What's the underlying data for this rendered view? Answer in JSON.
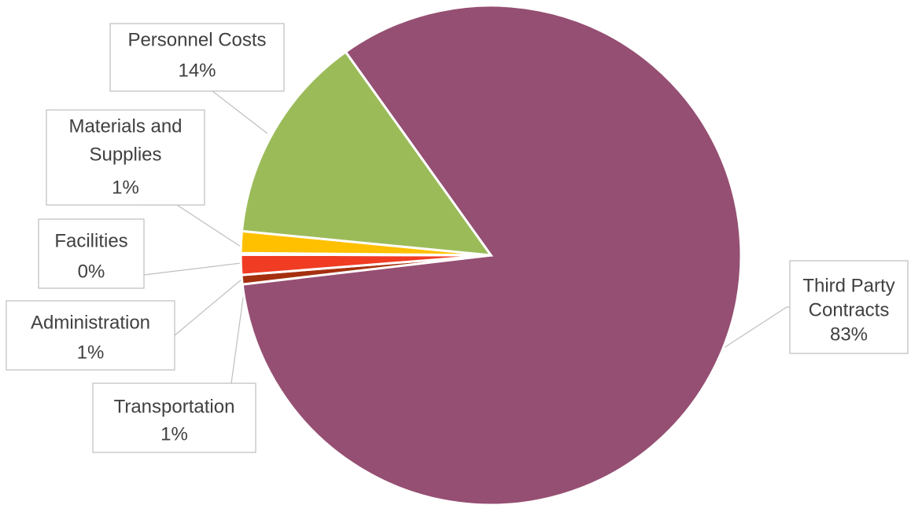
{
  "chart_data": {
    "type": "pie",
    "title": "",
    "slices": [
      {
        "name": "Third Party Contracts",
        "value": 83,
        "label_lines": [
          "Third Party",
          "Contracts"
        ],
        "pct_label": "83%",
        "color": "#954F72"
      },
      {
        "name": "Transportation",
        "value": 0.6,
        "label_lines": [
          "Transportation"
        ],
        "pct_label": "1%",
        "color": "#A5300F"
      },
      {
        "name": "Administration",
        "value": 1.3,
        "label_lines": [
          "Administration"
        ],
        "pct_label": "1%",
        "color": "#F03C23"
      },
      {
        "name": "Facilities",
        "value": 0.1,
        "label_lines": [
          "Facilities"
        ],
        "pct_label": "0%",
        "color": "#FFFFFF"
      },
      {
        "name": "Materials and Supplies",
        "value": 1.4,
        "label_lines": [
          "Materials and",
          "Supplies"
        ],
        "pct_label": "1%",
        "color": "#FFC000"
      },
      {
        "name": "Personnel Costs",
        "value": 13.6,
        "label_lines": [
          "Personnel Costs"
        ],
        "pct_label": "14%",
        "color": "#9BBB59"
      }
    ]
  }
}
